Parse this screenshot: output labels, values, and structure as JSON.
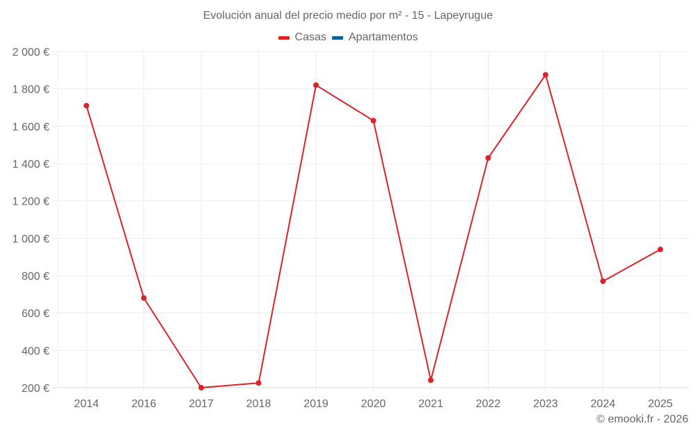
{
  "title": "Evolución anual del precio medio por m² - 15 - Lapeyrugue",
  "legend": [
    {
      "label": "Casas",
      "color": "#dc2127"
    },
    {
      "label": "Apartamentos",
      "color": "#0a64a0"
    }
  ],
  "footer": "© emooki.fr - 2026",
  "chart_data": {
    "type": "line",
    "title": "Evolución anual del precio medio por m² - 15 - Lapeyrugue",
    "xlabel": "",
    "ylabel": "",
    "categories": [
      "2014",
      "2016",
      "2017",
      "2018",
      "2019",
      "2020",
      "2021",
      "2022",
      "2023",
      "2024",
      "2025"
    ],
    "series": [
      {
        "name": "Casas",
        "color": "#dc2127",
        "values": [
          1710,
          680,
          200,
          225,
          1820,
          1630,
          240,
          1430,
          1875,
          770,
          940
        ]
      },
      {
        "name": "Apartamentos",
        "color": "#0a64a0",
        "values": []
      }
    ],
    "ylim": [
      200,
      2000
    ],
    "yticks": [
      200,
      400,
      600,
      800,
      1000,
      1200,
      1400,
      1600,
      1800,
      2000
    ],
    "ytick_labels": [
      "200 €",
      "400 €",
      "600 €",
      "800 €",
      "1 000 €",
      "1 200 €",
      "1 400 €",
      "1 600 €",
      "1 800 €",
      "2 000 €"
    ],
    "grid": true,
    "legend_position": "top"
  }
}
